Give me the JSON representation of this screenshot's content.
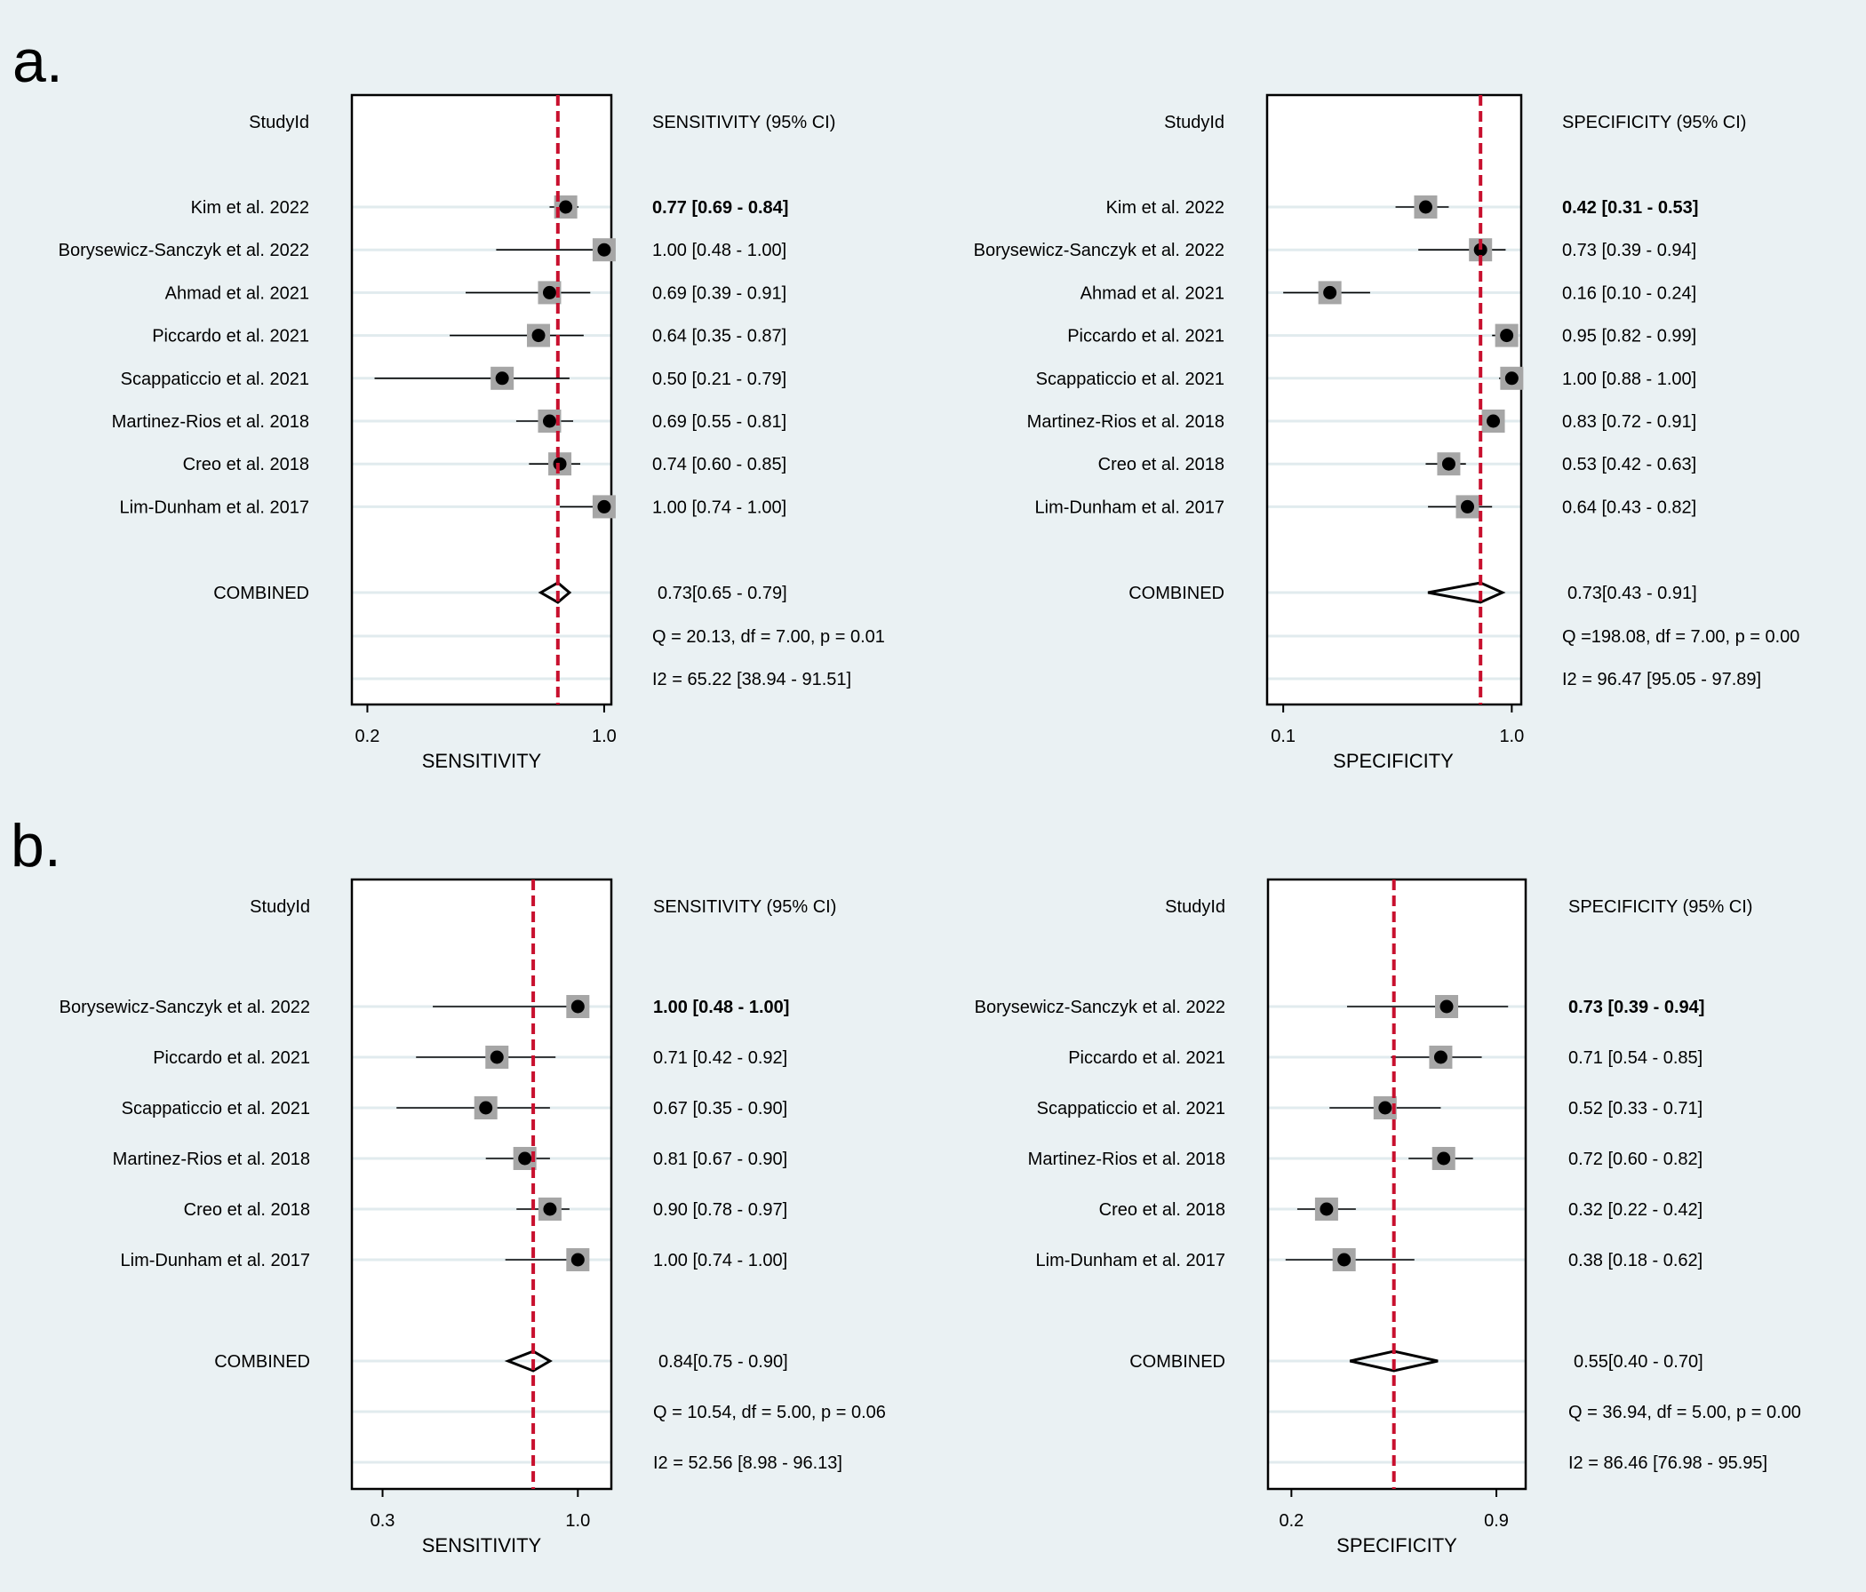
{
  "panel_labels": [
    "a.",
    "b."
  ],
  "chart_data": [
    {
      "type": "forest",
      "panel": "a",
      "measure": "sensitivity",
      "studyid_header": "StudyId",
      "ci_header": "SENSITIVITY (95% CI)",
      "xlabel": "SENSITIVITY",
      "xscale": "log",
      "xlim": [
        0.18,
        1.05
      ],
      "xticks": [
        0.2,
        1.0
      ],
      "xtick_labels": [
        "0.2",
        "1.0"
      ],
      "reference_line": 0.73,
      "studies": [
        {
          "name": "Kim et al. 2022",
          "est": 0.77,
          "lo": 0.69,
          "hi": 0.84,
          "label": "0.77 [0.69 - 0.84]"
        },
        {
          "name": "Borysewicz-Sanczyk et al. 2022",
          "est": 1.0,
          "lo": 0.48,
          "hi": 1.0,
          "label": "1.00 [0.48 - 1.00]"
        },
        {
          "name": "Ahmad et al. 2021",
          "est": 0.69,
          "lo": 0.39,
          "hi": 0.91,
          "label": "0.69 [0.39 - 0.91]"
        },
        {
          "name": "Piccardo et al. 2021",
          "est": 0.64,
          "lo": 0.35,
          "hi": 0.87,
          "label": "0.64 [0.35 - 0.87]"
        },
        {
          "name": "Scappaticcio et al. 2021",
          "est": 0.5,
          "lo": 0.21,
          "hi": 0.79,
          "label": "0.50 [0.21 - 0.79]"
        },
        {
          "name": "Martinez-Rios et al. 2018",
          "est": 0.69,
          "lo": 0.55,
          "hi": 0.81,
          "label": "0.69 [0.55 - 0.81]"
        },
        {
          "name": "Creo et al. 2018",
          "est": 0.74,
          "lo": 0.6,
          "hi": 0.85,
          "label": "0.74 [0.60 - 0.85]"
        },
        {
          "name": "Lim-Dunham et al. 2017",
          "est": 1.0,
          "lo": 0.74,
          "hi": 1.0,
          "label": "1.00 [0.74 - 1.00]"
        }
      ],
      "combined": {
        "name": "COMBINED",
        "est": 0.73,
        "lo": 0.65,
        "hi": 0.79,
        "label": "0.73[0.65 - 0.79]"
      },
      "q_text": "Q = 20.13, df = 7.00, p =  0.01",
      "i2_text": "I2 = 65.22 [38.94 - 91.51]"
    },
    {
      "type": "forest",
      "panel": "a",
      "measure": "specificity",
      "studyid_header": "StudyId",
      "ci_header": "SPECIFICITY (95% CI)",
      "xlabel": "SPECIFICITY",
      "xscale": "log",
      "xlim": [
        0.085,
        1.1
      ],
      "xticks": [
        0.1,
        1.0
      ],
      "xtick_labels": [
        "0.1",
        "1.0"
      ],
      "reference_line": 0.73,
      "studies": [
        {
          "name": "Kim et al. 2022",
          "est": 0.42,
          "lo": 0.31,
          "hi": 0.53,
          "label": "0.42 [0.31 - 0.53]"
        },
        {
          "name": "Borysewicz-Sanczyk et al. 2022",
          "est": 0.73,
          "lo": 0.39,
          "hi": 0.94,
          "label": "0.73 [0.39 - 0.94]"
        },
        {
          "name": "Ahmad et al. 2021",
          "est": 0.16,
          "lo": 0.1,
          "hi": 0.24,
          "label": "0.16 [0.10 - 0.24]"
        },
        {
          "name": "Piccardo et al. 2021",
          "est": 0.95,
          "lo": 0.82,
          "hi": 0.99,
          "label": "0.95 [0.82 - 0.99]"
        },
        {
          "name": "Scappaticcio et al. 2021",
          "est": 1.0,
          "lo": 0.88,
          "hi": 1.0,
          "label": "1.00 [0.88 - 1.00]"
        },
        {
          "name": "Martinez-Rios et al. 2018",
          "est": 0.83,
          "lo": 0.72,
          "hi": 0.91,
          "label": "0.83 [0.72 - 0.91]"
        },
        {
          "name": "Creo et al. 2018",
          "est": 0.53,
          "lo": 0.42,
          "hi": 0.63,
          "label": "0.53 [0.42 - 0.63]"
        },
        {
          "name": "Lim-Dunham et al. 2017",
          "est": 0.64,
          "lo": 0.43,
          "hi": 0.82,
          "label": "0.64 [0.43 - 0.82]"
        }
      ],
      "combined": {
        "name": "COMBINED",
        "est": 0.73,
        "lo": 0.43,
        "hi": 0.91,
        "label": "0.73[0.43 - 0.91]"
      },
      "q_text": "Q =198.08, df = 7.00, p =  0.00",
      "i2_text": "I2 = 96.47 [95.05 - 97.89]"
    },
    {
      "type": "forest",
      "panel": "b",
      "measure": "sensitivity",
      "studyid_header": "StudyId",
      "ci_header": "SENSITIVITY (95% CI)",
      "xlabel": "SENSITIVITY",
      "xscale": "linear",
      "xlim": [
        0.19,
        1.12
      ],
      "xticks": [
        0.3,
        1.0
      ],
      "xtick_labels": [
        "0.3",
        "1.0"
      ],
      "reference_line": 0.84,
      "studies": [
        {
          "name": "Borysewicz-Sanczyk et al. 2022",
          "est": 1.0,
          "lo": 0.48,
          "hi": 1.0,
          "label": "1.00 [0.48 - 1.00]"
        },
        {
          "name": "Piccardo et al. 2021",
          "est": 0.71,
          "lo": 0.42,
          "hi": 0.92,
          "label": "0.71 [0.42 - 0.92]"
        },
        {
          "name": "Scappaticcio et al. 2021",
          "est": 0.67,
          "lo": 0.35,
          "hi": 0.9,
          "label": "0.67 [0.35 - 0.90]"
        },
        {
          "name": "Martinez-Rios et al. 2018",
          "est": 0.81,
          "lo": 0.67,
          "hi": 0.9,
          "label": "0.81 [0.67 - 0.90]"
        },
        {
          "name": "Creo et al. 2018",
          "est": 0.9,
          "lo": 0.78,
          "hi": 0.97,
          "label": "0.90 [0.78 - 0.97]"
        },
        {
          "name": "Lim-Dunham et al. 2017",
          "est": 1.0,
          "lo": 0.74,
          "hi": 1.0,
          "label": "1.00 [0.74 - 1.00]"
        }
      ],
      "combined": {
        "name": "COMBINED",
        "est": 0.84,
        "lo": 0.75,
        "hi": 0.9,
        "label": "0.84[0.75 - 0.90]"
      },
      "q_text": "Q = 10.54, df = 5.00, p =  0.06",
      "i2_text": "I2 = 52.56 [8.98 - 96.13]"
    },
    {
      "type": "forest",
      "panel": "b",
      "measure": "specificity",
      "studyid_header": "StudyId",
      "ci_header": "SPECIFICITY (95% CI)",
      "xlabel": "SPECIFICITY",
      "xscale": "linear",
      "xlim": [
        0.12,
        1.0
      ],
      "xticks": [
        0.2,
        0.9
      ],
      "xtick_labels": [
        "0.2",
        "0.9"
      ],
      "reference_line": 0.55,
      "studies": [
        {
          "name": "Borysewicz-Sanczyk et al. 2022",
          "est": 0.73,
          "lo": 0.39,
          "hi": 0.94,
          "label": "0.73 [0.39 - 0.94]"
        },
        {
          "name": "Piccardo et al. 2021",
          "est": 0.71,
          "lo": 0.54,
          "hi": 0.85,
          "label": "0.71 [0.54 - 0.85]"
        },
        {
          "name": "Scappaticcio et al. 2021",
          "est": 0.52,
          "lo": 0.33,
          "hi": 0.71,
          "label": "0.52 [0.33 - 0.71]"
        },
        {
          "name": "Martinez-Rios et al. 2018",
          "est": 0.72,
          "lo": 0.6,
          "hi": 0.82,
          "label": "0.72 [0.60 - 0.82]"
        },
        {
          "name": "Creo et al. 2018",
          "est": 0.32,
          "lo": 0.22,
          "hi": 0.42,
          "label": "0.32 [0.22 - 0.42]"
        },
        {
          "name": "Lim-Dunham et al. 2017",
          "est": 0.38,
          "lo": 0.18,
          "hi": 0.62,
          "label": "0.38 [0.18 - 0.62]"
        }
      ],
      "combined": {
        "name": "COMBINED",
        "est": 0.55,
        "lo": 0.4,
        "hi": 0.7,
        "label": "0.55[0.40 - 0.70]"
      },
      "q_text": "Q = 36.94, df = 5.00, p =  0.00",
      "i2_text": "I2 = 86.46 [76.98 - 95.95]"
    }
  ]
}
